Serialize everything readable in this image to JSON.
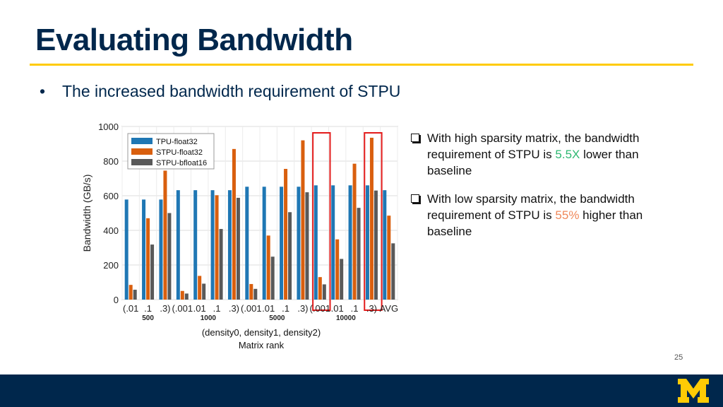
{
  "slide": {
    "title": "Evaluating Bandwidth",
    "bullet": "The increased bandwidth requirement of STPU",
    "caption_line1": "(density0, density1, density2)",
    "caption_line2": "Matrix rank",
    "page_number": "25"
  },
  "notes": [
    {
      "pre": "With high sparsity matrix, the bandwidth requirement of STPU is ",
      "highlight": "5.5X",
      "post": " lower than baseline",
      "highlight_color": "#2eb872"
    },
    {
      "pre": "With low sparsity matrix, the bandwidth requirement of STPU is ",
      "highlight": "55%",
      "post": " higher than baseline",
      "highlight_color": "#f0885a"
    }
  ],
  "colors": {
    "title": "#00274c",
    "rule": "#ffcb05",
    "footer": "#00274c",
    "logo": "#ffcb05",
    "highlight_box": "#e31b1b"
  },
  "chart_data": {
    "type": "bar",
    "ylabel": "Bandwidth (GB/s)",
    "ylim": [
      0,
      1000
    ],
    "yticks": [
      0,
      200,
      400,
      600,
      800,
      1000
    ],
    "grid": true,
    "legend_position": "top-left",
    "categories": [
      ".01",
      ".1",
      ".3",
      ".001",
      ".01",
      ".1",
      ".3",
      ".001",
      ".01",
      ".1",
      ".3",
      ".001",
      ".01",
      ".1",
      ".3",
      "AVG"
    ],
    "tick_labels": [
      "(.01",
      ".1",
      ".3)",
      "(.001",
      ".01",
      ".1",
      ".3)",
      "(.001",
      ".01",
      ".1",
      ".3)",
      "(.001",
      ".01",
      ".1",
      ".3)",
      "AVG"
    ],
    "group_labels": [
      {
        "label": "500",
        "from": 0,
        "to": 2
      },
      {
        "label": "1000",
        "from": 3,
        "to": 6
      },
      {
        "label": "5000",
        "from": 7,
        "to": 10
      },
      {
        "label": "10000",
        "from": 11,
        "to": 14
      }
    ],
    "series": [
      {
        "name": "TPU-float32",
        "color": "#1f77b4",
        "values": [
          578,
          578,
          578,
          632,
          632,
          632,
          632,
          652,
          652,
          652,
          652,
          660,
          660,
          660,
          660,
          632
        ]
      },
      {
        "name": "STPU-float32",
        "color": "#d95f0e",
        "values": [
          85,
          470,
          745,
          50,
          137,
          603,
          870,
          90,
          370,
          755,
          920,
          130,
          348,
          785,
          935,
          485
        ]
      },
      {
        "name": "STPU-bfloat16",
        "color": "#595959",
        "values": [
          57,
          318,
          500,
          35,
          92,
          408,
          588,
          62,
          248,
          505,
          620,
          88,
          235,
          530,
          630,
          325
        ]
      }
    ],
    "highlighted_categories": [
      11,
      14
    ]
  }
}
